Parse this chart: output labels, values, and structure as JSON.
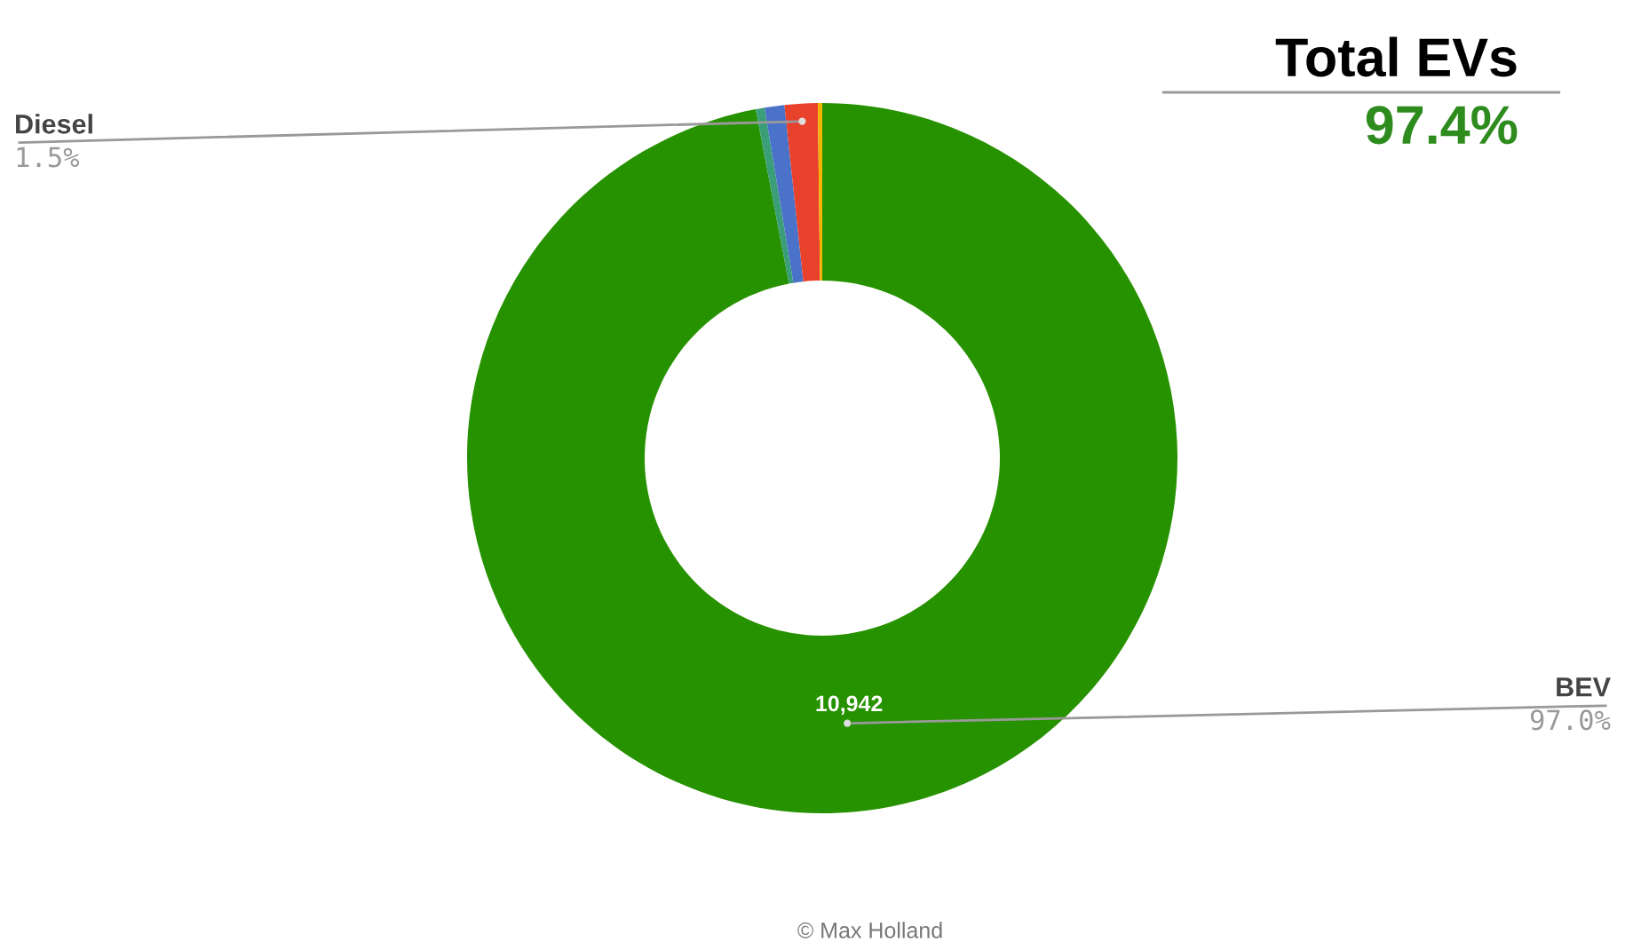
{
  "chart_data": {
    "type": "donut",
    "categories": [
      "BEV",
      null,
      null,
      "Diesel",
      null
    ],
    "values": [
      97.0,
      0.4,
      0.9,
      1.5,
      0.2
    ],
    "colors": [
      "#279200",
      "#3a9e78",
      "#4a72c8",
      "#e8412c",
      "#f4b400"
    ],
    "value_labels": [
      "97.0%",
      null,
      null,
      "1.5%",
      null
    ],
    "annotations": [
      {
        "text": "10,942",
        "x": "BEV"
      },
      "Total EVs",
      "97.4%",
      "© Max Holland"
    ],
    "legend": false
  }
}
